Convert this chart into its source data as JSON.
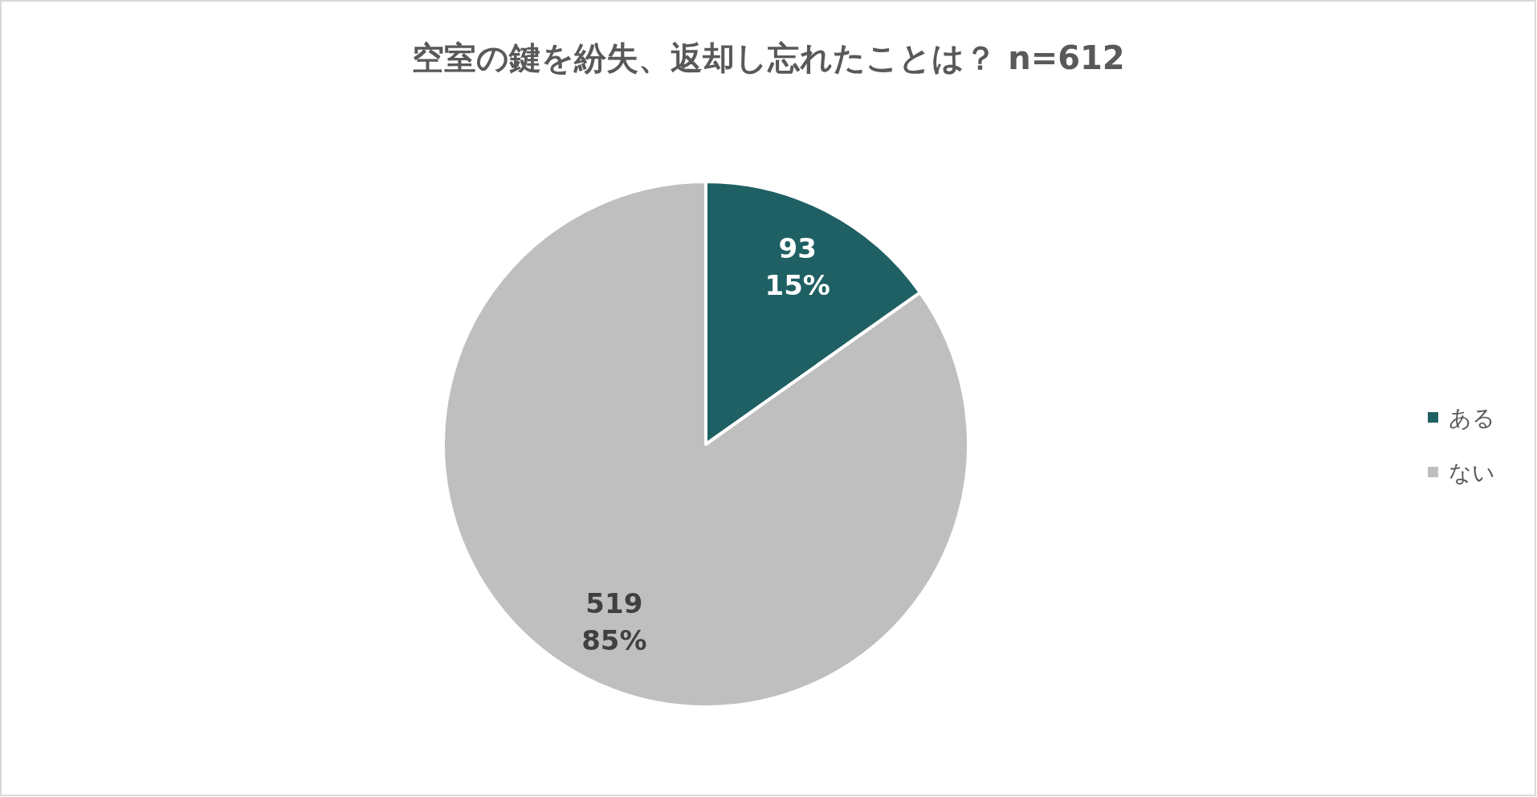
{
  "chart_data": {
    "type": "pie",
    "title": "空室の鍵を紛失、返却し忘れたことは？ n=612",
    "categories": [
      "ある",
      "ない"
    ],
    "values": [
      93,
      519
    ],
    "colors": [
      "#1f6064",
      "#bfbfbf"
    ],
    "value_labels": [
      "93\n15%",
      "519\n85%"
    ],
    "legend": "right"
  }
}
